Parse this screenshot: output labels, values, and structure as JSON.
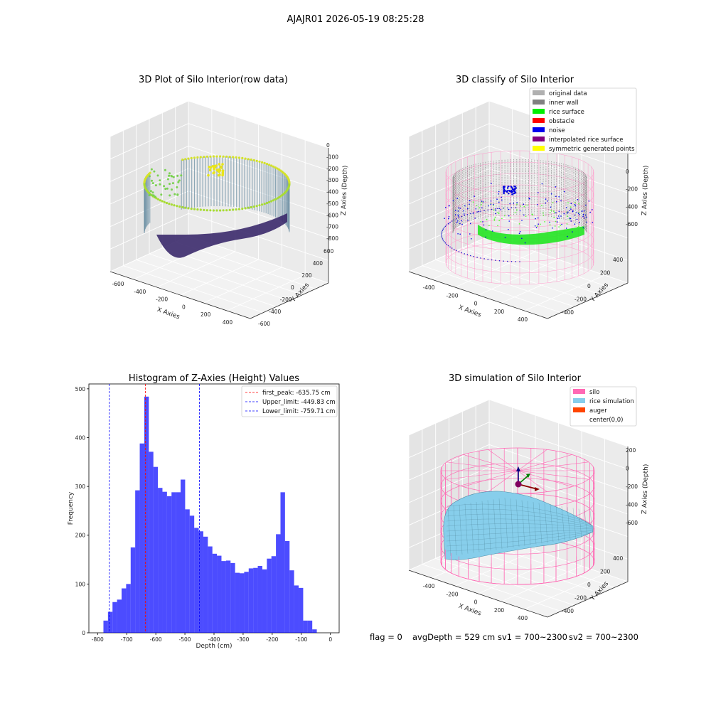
{
  "figure": {
    "suptitle": "AJAJR01 2026-05-19 08:25:28",
    "status": {
      "flag": "flag = 0",
      "avg_depth": "avgDepth = 529 cm",
      "sv1": "sv1 = 700~2300",
      "sv2": "sv2 = 700~2300"
    }
  },
  "panels": {
    "raw": {
      "title": "3D Plot of Silo Interior(row data)",
      "xlabel": "X Axies",
      "ylabel": "Y Axies",
      "zlabel": "Z Axies (Depth)",
      "x_ticks": [
        "-600",
        "-400",
        "-200",
        "0",
        "200",
        "400"
      ],
      "y_ticks": [
        "600",
        "400",
        "200",
        "0",
        "-200",
        "-400",
        "-600"
      ],
      "z_ticks": [
        "0",
        "-100",
        "-200",
        "-300",
        "-400",
        "-500",
        "-600",
        "-700",
        "-800"
      ],
      "colormap": [
        "#440154",
        "#3b528b",
        "#21918c",
        "#5ec962",
        "#fde725"
      ]
    },
    "classify": {
      "title": "3D classify of Silo Interior",
      "xlabel": "X Axies",
      "ylabel": "Y Axies",
      "zlabel": "Z Axies (Depth)",
      "x_ticks": [
        "-400",
        "-200",
        "0",
        "200",
        "400"
      ],
      "y_ticks": [
        "400",
        "200",
        "0",
        "-200",
        "-400"
      ],
      "z_ticks": [
        "0",
        "-200",
        "-400",
        "-600"
      ],
      "legend": [
        {
          "label": "original data",
          "color": "#b0b0b0"
        },
        {
          "label": "inner wall",
          "color": "#808080"
        },
        {
          "label": "rice surface",
          "color": "#00ee00"
        },
        {
          "label": "obstacle",
          "color": "#ff0000"
        },
        {
          "label": "noise",
          "color": "#0000ee"
        },
        {
          "label": "interpolated rice surface",
          "color": "#800080"
        },
        {
          "label": "symmetric generated points",
          "color": "#ffff00"
        }
      ]
    },
    "simulation": {
      "title": "3D simulation of Silo Interior",
      "xlabel": "X Axies",
      "ylabel": "Y Axies",
      "zlabel": "Z Axies (Depth)",
      "x_ticks": [
        "-400",
        "-200",
        "0",
        "200",
        "400"
      ],
      "y_ticks": [
        "400",
        "200",
        "0",
        "-200",
        "-400"
      ],
      "z_ticks": [
        "200",
        "0",
        "-200",
        "-400",
        "-600"
      ],
      "legend": [
        {
          "label": "silo",
          "color": "#ff69b4"
        },
        {
          "label": "rice simulation",
          "color": "#87ceeb"
        },
        {
          "label": "auger",
          "color": "#ff4500"
        },
        {
          "label": "center(0,0)",
          "color": ""
        }
      ],
      "silo_color": "#ff69b4",
      "rice_color": "#87ceeb"
    }
  },
  "chart_data": {
    "type": "bar",
    "title": "Histogram of Z-Axies (Height) Values",
    "xlabel": "Depth (cm)",
    "ylabel": "Frequency",
    "bar_color": "#0000ff",
    "xlim": [
      -830,
      30
    ],
    "ylim": [
      0,
      510
    ],
    "x_ticks": [
      -800,
      -700,
      -600,
      -500,
      -400,
      -300,
      -200,
      -100,
      0
    ],
    "y_ticks": [
      0,
      100,
      200,
      300,
      400,
      500
    ],
    "bins_start": -780,
    "bin_width": 15.6,
    "values": [
      25,
      43,
      63,
      68,
      91,
      100,
      175,
      292,
      388,
      484,
      371,
      340,
      297,
      289,
      280,
      288,
      288,
      314,
      253,
      240,
      215,
      208,
      197,
      177,
      162,
      158,
      147,
      148,
      143,
      123,
      122,
      125,
      132,
      133,
      137,
      130,
      152,
      157,
      202,
      288,
      188,
      128,
      97,
      92,
      25,
      25,
      7
    ],
    "vlines": [
      {
        "label": "first_peak: -635.75 cm",
        "value": -635.75,
        "color": "#ff0000"
      },
      {
        "label": "Upper_limit: -449.83 cm",
        "value": -449.83,
        "color": "#0000ff"
      },
      {
        "label": "Lower_limit: -759.71 cm",
        "value": -759.71,
        "color": "#0000ff"
      }
    ],
    "legend_position": "top-right"
  }
}
